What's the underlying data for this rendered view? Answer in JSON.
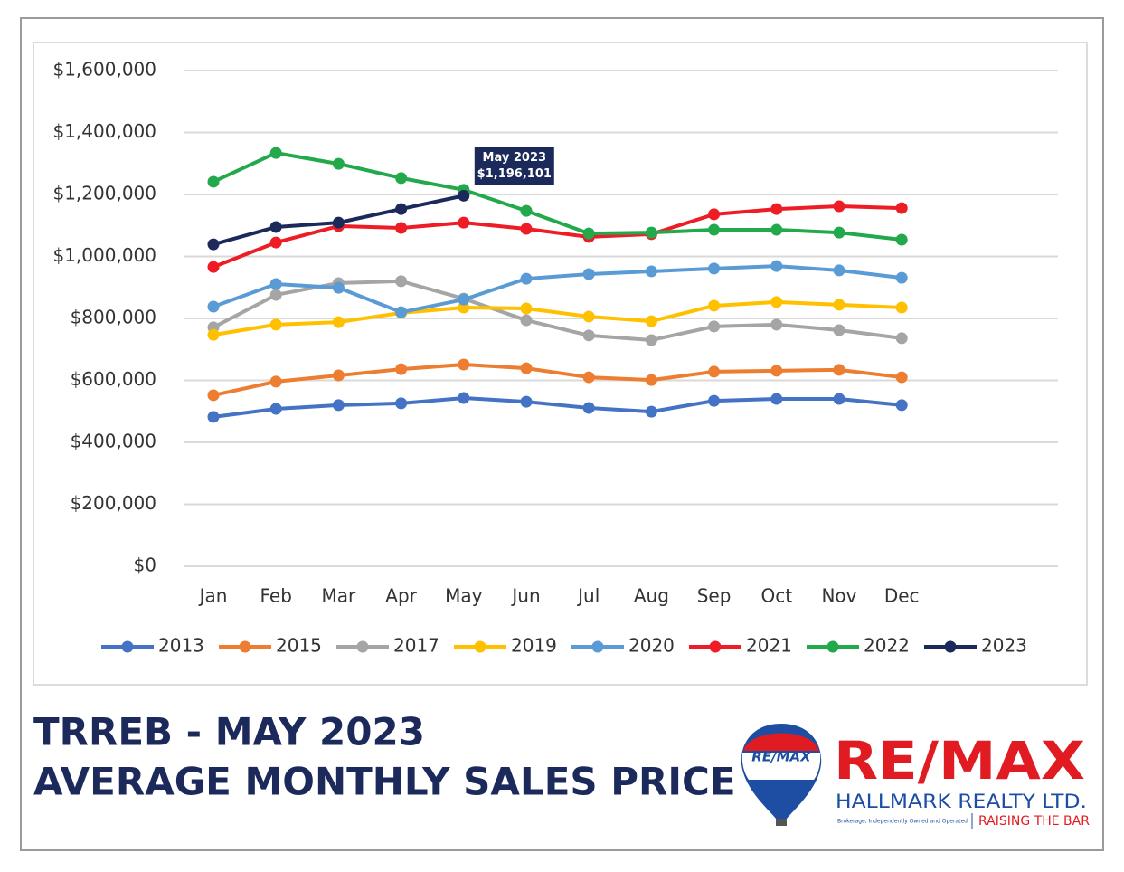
{
  "chart_data": {
    "type": "line",
    "categories": [
      "Jan",
      "Feb",
      "Mar",
      "Apr",
      "May",
      "Jun",
      "Jul",
      "Aug",
      "Sep",
      "Oct",
      "Nov",
      "Dec"
    ],
    "ylim": [
      0,
      1600000
    ],
    "yticks": [
      {
        "value": 0,
        "label": "$0"
      },
      {
        "value": 200000,
        "label": "$200,000"
      },
      {
        "value": 400000,
        "label": "$400,000"
      },
      {
        "value": 600000,
        "label": "$600,000"
      },
      {
        "value": 800000,
        "label": "$800,000"
      },
      {
        "value": 1000000,
        "label": "$1,000,000"
      },
      {
        "value": 1200000,
        "label": "$1,200,000"
      },
      {
        "value": 1400000,
        "label": "$1,400,000"
      },
      {
        "value": 1600000,
        "label": "$1,600,000"
      }
    ],
    "grid": true,
    "legend": "bottom",
    "annotation": "May 2023",
    "series": [
      {
        "name": "2013",
        "color": "#4472c4",
        "values": [
          482000,
          508000,
          520000,
          526000,
          543000,
          531000,
          511000,
          499000,
          534000,
          540000,
          540000,
          520000
        ]
      },
      {
        "name": "2015",
        "color": "#ed7d31",
        "values": [
          552000,
          596000,
          616000,
          636000,
          651000,
          639000,
          610000,
          601000,
          628000,
          631000,
          634000,
          610000
        ]
      },
      {
        "name": "2017",
        "color": "#a5a5a5",
        "values": [
          771000,
          876000,
          914000,
          920000,
          864000,
          794000,
          745000,
          730000,
          774000,
          780000,
          762000,
          736000
        ]
      },
      {
        "name": "2019",
        "color": "#ffc000",
        "values": [
          747000,
          780000,
          788000,
          818000,
          835000,
          832000,
          806000,
          791000,
          841000,
          853000,
          844000,
          835000
        ]
      },
      {
        "name": "2020",
        "color": "#5b9bd5",
        "values": [
          838000,
          911000,
          899000,
          820000,
          861000,
          928000,
          943000,
          952000,
          961000,
          969000,
          955000,
          931000
        ]
      },
      {
        "name": "2021",
        "color": "#ee1c25",
        "values": [
          966000,
          1045000,
          1098000,
          1092000,
          1109000,
          1089000,
          1063000,
          1072000,
          1136000,
          1153000,
          1162000,
          1156000
        ]
      },
      {
        "name": "2022",
        "color": "#22a94b",
        "values": [
          1241000,
          1334000,
          1299000,
          1253000,
          1215000,
          1147000,
          1074000,
          1077000,
          1086000,
          1086000,
          1077000,
          1054000
        ]
      },
      {
        "name": "2023",
        "color": "#1b2a5a",
        "values": [
          1039000,
          1095000,
          1109000,
          1153000,
          1196101,
          null,
          null,
          null,
          null,
          null,
          null,
          null
        ],
        "value_labels": [
          null,
          null,
          null,
          null,
          "$1,196,101",
          null,
          null,
          null,
          null,
          null,
          null,
          null
        ]
      }
    ]
  },
  "footer": {
    "title_line1": "TRREB - MAY 2023",
    "title_line2": "AVERAGE MONTHLY SALES PRICE",
    "balloon_text": "RE/MAX",
    "brand": "RE/MAX",
    "company": "HALLMARK REALTY LTD.",
    "tagline_small": "Brokerage, Independently Owned and Operated",
    "slogan": "RAISING THE BAR"
  }
}
